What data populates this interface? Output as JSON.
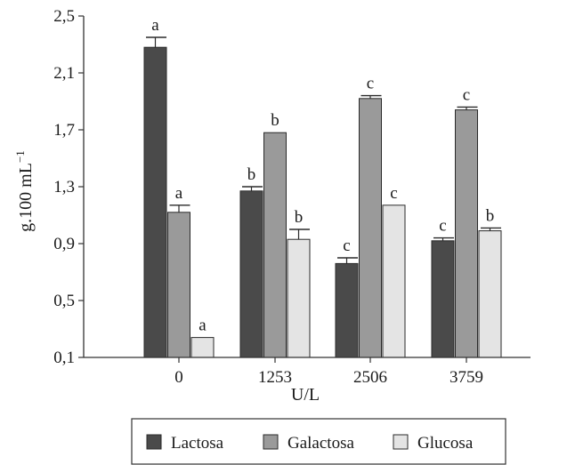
{
  "chart_data": {
    "type": "bar",
    "title": "",
    "xlabel": "U/L",
    "ylabel": "g.100 mL",
    "ylabel_superscript": "−1",
    "categories": [
      "0",
      "1253",
      "2506",
      "3759"
    ],
    "yticks": [
      "0,1",
      "0,5",
      "0,9",
      "1,3",
      "1,7",
      "2,1",
      "2,5"
    ],
    "ylim": [
      0.1,
      2.5
    ],
    "grid": false,
    "legend_placement": "bottom",
    "series": [
      {
        "name": "Lactosa",
        "color": "#4a4a4a",
        "values": [
          2.28,
          1.27,
          0.76,
          0.92
        ],
        "errors": [
          0.07,
          0.03,
          0.04,
          0.02
        ],
        "labels": [
          "a",
          "b",
          "c",
          "c"
        ]
      },
      {
        "name": "Galactosa",
        "color": "#9a9a9a",
        "values": [
          1.12,
          1.68,
          1.92,
          1.84
        ],
        "errors": [
          0.05,
          0.0,
          0.02,
          0.02
        ],
        "labels": [
          "a",
          "b",
          "c",
          "c"
        ]
      },
      {
        "name": "Glucosa",
        "color": "#e4e4e4",
        "values": [
          0.24,
          0.93,
          1.17,
          0.99
        ],
        "errors": [
          0.0,
          0.07,
          0.0,
          0.02
        ],
        "labels": [
          "a",
          "b",
          "c",
          "b"
        ]
      }
    ]
  }
}
